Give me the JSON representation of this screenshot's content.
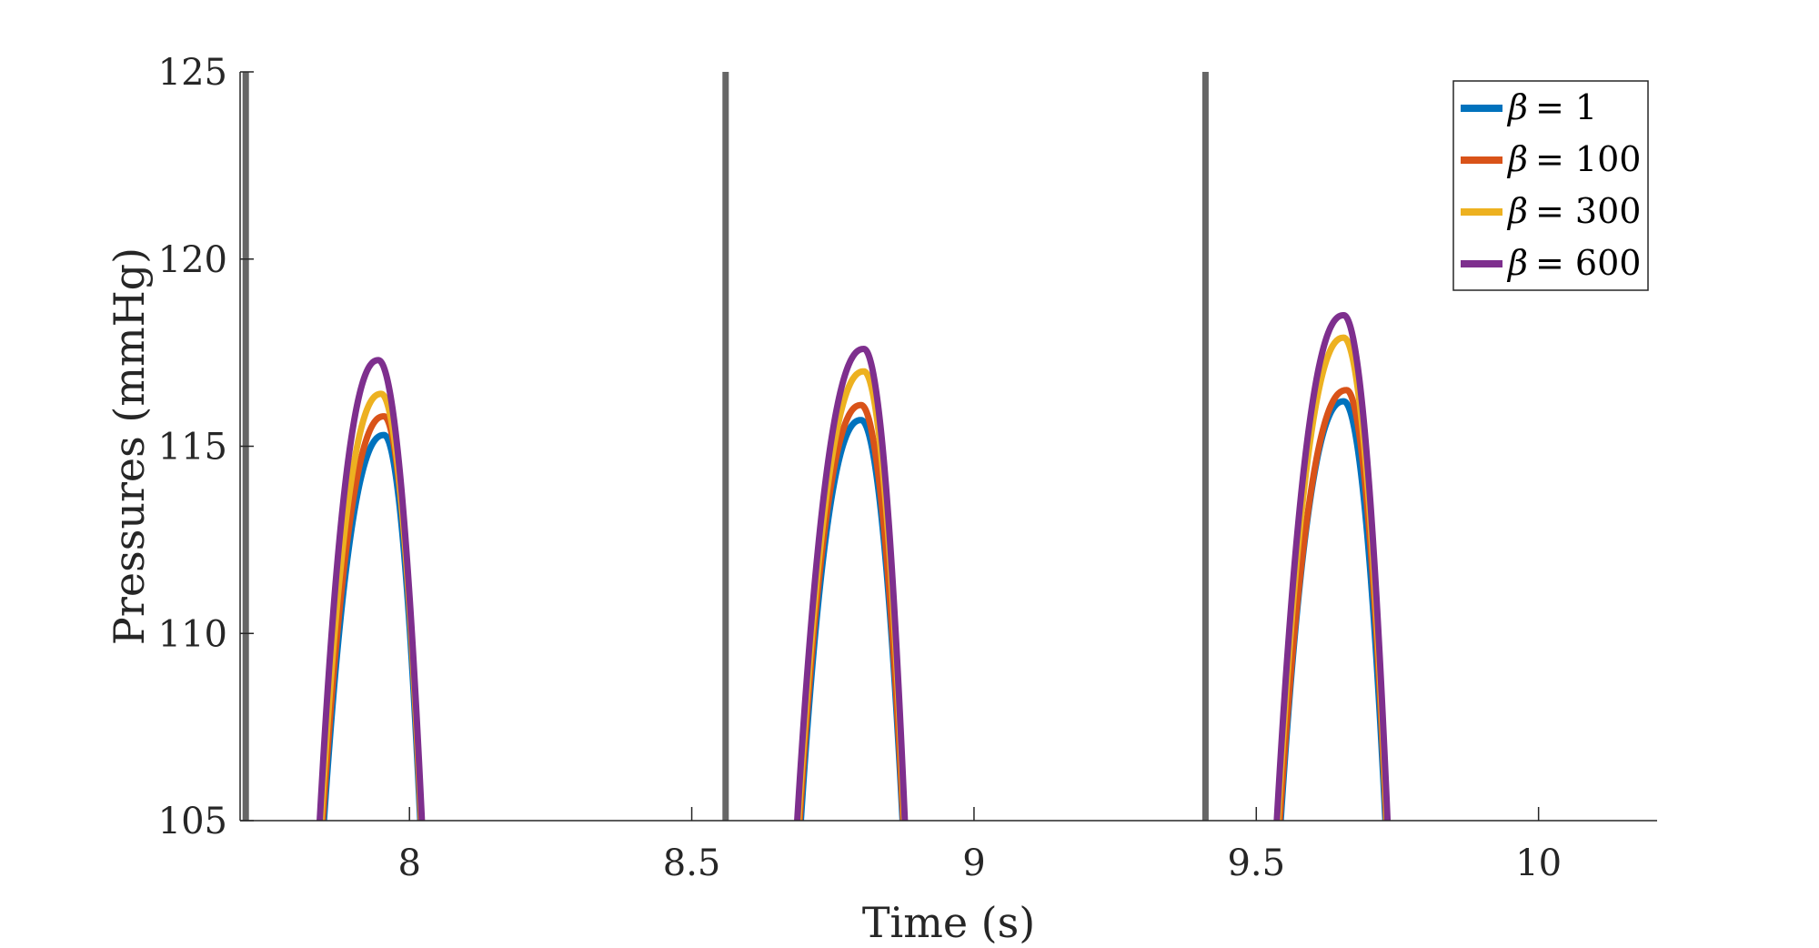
{
  "chart_data": {
    "type": "line",
    "title": "",
    "xlabel": "Time (s)",
    "ylabel": "Pressures (mmHg)",
    "xlim": [
      7.7,
      10.21
    ],
    "ylim": [
      105,
      125
    ],
    "xticks": [
      8,
      8.5,
      9,
      9.5,
      10
    ],
    "xtick_labels": [
      "8",
      "8.5",
      "9",
      "9.5",
      "10"
    ],
    "yticks": [
      105,
      110,
      115,
      120,
      125
    ],
    "ytick_labels": [
      "105",
      "110",
      "115",
      "120",
      "125"
    ],
    "grid": false,
    "legend_position": "top-right",
    "vertical_lines": {
      "color": "#666666",
      "x": [
        7.71,
        8.56,
        9.41
      ]
    },
    "series": [
      {
        "name": "β = 1",
        "legend_label": "= 1",
        "color": "#0072BD",
        "pulses": [
          {
            "start": 7.84,
            "peak_t": 7.955,
            "peak": 115.3,
            "end": 8.025
          },
          {
            "start": 8.685,
            "peak_t": 8.8,
            "peak": 115.7,
            "end": 8.88
          },
          {
            "start": 9.535,
            "peak_t": 9.655,
            "peak": 116.2,
            "end": 9.735
          }
        ]
      },
      {
        "name": "β = 100",
        "legend_label": "= 100",
        "color": "#D95319",
        "pulses": [
          {
            "start": 7.838,
            "peak_t": 7.955,
            "peak": 115.8,
            "end": 8.026
          },
          {
            "start": 8.683,
            "peak_t": 8.8,
            "peak": 116.1,
            "end": 8.881
          },
          {
            "start": 9.533,
            "peak_t": 9.66,
            "peak": 116.5,
            "end": 9.736
          }
        ]
      },
      {
        "name": "β = 300",
        "legend_label": "= 300",
        "color": "#EDB120",
        "pulses": [
          {
            "start": 7.836,
            "peak_t": 7.95,
            "peak": 116.4,
            "end": 8.027
          },
          {
            "start": 8.681,
            "peak_t": 8.805,
            "peak": 117.0,
            "end": 8.882
          },
          {
            "start": 9.531,
            "peak_t": 9.655,
            "peak": 117.9,
            "end": 9.737
          }
        ]
      },
      {
        "name": "β = 600",
        "legend_label": "= 600",
        "color": "#7E2F8E",
        "pulses": [
          {
            "start": 7.834,
            "peak_t": 7.945,
            "peak": 117.3,
            "end": 8.028
          },
          {
            "start": 8.679,
            "peak_t": 8.805,
            "peak": 117.6,
            "end": 8.883
          },
          {
            "start": 9.529,
            "peak_t": 9.655,
            "peak": 118.5,
            "end": 9.738
          }
        ]
      }
    ]
  }
}
